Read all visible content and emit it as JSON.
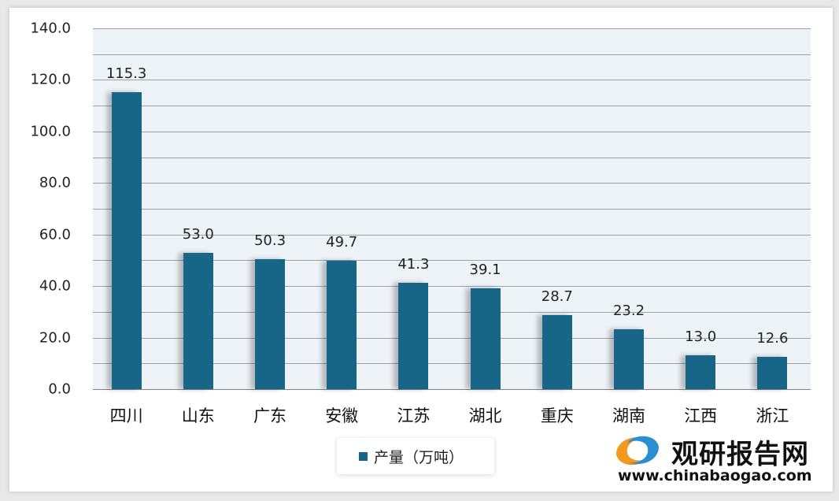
{
  "chart_data": {
    "type": "bar",
    "title": "",
    "xlabel": "",
    "ylabel": "",
    "categories": [
      "四川",
      "山东",
      "广东",
      "安徽",
      "江苏",
      "湖北",
      "重庆",
      "湖南",
      "江西",
      "浙江"
    ],
    "series": [
      {
        "name": "产量（万吨）",
        "values": [
          115.3,
          53.0,
          50.3,
          49.7,
          41.3,
          39.1,
          28.7,
          23.2,
          13.0,
          12.6
        ],
        "color": "#176688"
      }
    ],
    "value_labels": [
      "115.3",
      "53.0",
      "50.3",
      "49.7",
      "41.3",
      "39.1",
      "28.7",
      "23.2",
      "13.0",
      "12.6"
    ],
    "ylim": [
      0,
      140
    ],
    "yticks": [
      "0.0",
      "20.0",
      "40.0",
      "60.0",
      "80.0",
      "100.0",
      "120.0",
      "140.0"
    ],
    "minor_grid_step": 10,
    "grid": true,
    "legend_position": "bottom"
  },
  "legend": {
    "label": "产量（万吨）"
  },
  "watermark": {
    "brand": "观研报告网",
    "url": "www.chinabaogao.com"
  }
}
